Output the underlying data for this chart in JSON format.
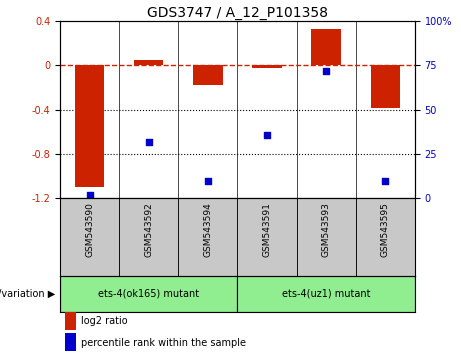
{
  "title": "GDS3747 / A_12_P101358",
  "categories": [
    "GSM543590",
    "GSM543592",
    "GSM543594",
    "GSM543591",
    "GSM543593",
    "GSM543595"
  ],
  "log2_ratio": [
    -1.1,
    0.05,
    -0.18,
    -0.02,
    0.33,
    -0.38
  ],
  "percentile_rank": [
    2,
    32,
    10,
    36,
    72,
    10
  ],
  "ylim_left": [
    -1.2,
    0.4
  ],
  "ylim_right": [
    0,
    100
  ],
  "yticks_left": [
    0.4,
    0,
    -0.4,
    -0.8,
    -1.2
  ],
  "yticks_right": [
    100,
    75,
    50,
    25,
    0
  ],
  "dotted_lines": [
    -0.4,
    -0.8
  ],
  "bar_color": "#cc2200",
  "scatter_color": "#0000cc",
  "bar_width": 0.5,
  "group1_label": "ets-4(ok165) mutant",
  "group2_label": "ets-4(uz1) mutant",
  "group1_indices": [
    0,
    1,
    2
  ],
  "group2_indices": [
    3,
    4,
    5
  ],
  "genotype_label": "genotype/variation",
  "legend_bar_label": "log2 ratio",
  "legend_scatter_label": "percentile rank within the sample",
  "group_bg_color": "#90ee90",
  "label_bg_color": "#c8c8c8",
  "title_fontsize": 10,
  "tick_fontsize": 7,
  "label_fontsize": 6.5,
  "genotype_fontsize": 7,
  "legend_fontsize": 7
}
